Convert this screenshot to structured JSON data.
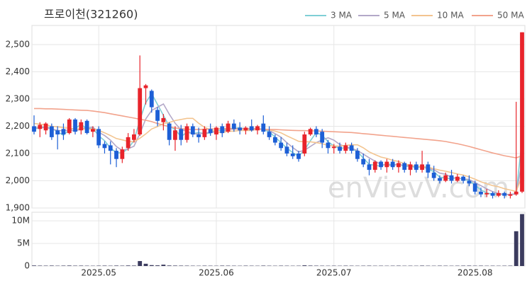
{
  "chart_data": {
    "type": "candlestick",
    "title": "프로이천(321260)",
    "watermark": "enVievV.com",
    "categories": [
      null,
      null,
      null,
      null,
      null,
      null,
      null,
      null,
      null,
      null,
      null,
      "2025.05",
      null,
      null,
      null,
      null,
      null,
      null,
      null,
      null,
      null,
      null,
      null,
      null,
      null,
      null,
      null,
      null,
      null,
      null,
      null,
      "2025.06",
      null,
      null,
      null,
      null,
      null,
      null,
      null,
      null,
      null,
      null,
      null,
      null,
      null,
      null,
      null,
      null,
      null,
      null,
      null,
      "2025.07",
      null,
      null,
      null,
      null,
      null,
      null,
      null,
      null,
      null,
      null,
      null,
      null,
      null,
      null,
      null,
      null,
      null,
      null,
      null,
      null,
      null,
      null,
      null,
      "2025.08",
      null,
      null,
      null,
      null,
      null,
      null,
      null,
      null
    ],
    "open": [
      2200,
      2190,
      2185,
      2200,
      2185,
      2190,
      2175,
      2225,
      2185,
      2220,
      2180,
      2190,
      2135,
      2130,
      2110,
      2080,
      2120,
      2150,
      2170,
      2340,
      2330,
      2260,
      2215,
      2210,
      2150,
      2190,
      2150,
      2200,
      2170,
      2160,
      2190,
      2170,
      2200,
      2180,
      2210,
      2195,
      2185,
      2200,
      2185,
      2210,
      2180,
      2160,
      2140,
      2125,
      2100,
      2100,
      2100,
      2170,
      2190,
      2180,
      2140,
      2120,
      2125,
      2110,
      2130,
      2110,
      2080,
      2060,
      2040,
      2070,
      2050,
      2070,
      2050,
      2065,
      2040,
      2060,
      2040,
      2060,
      2030,
      2010,
      2000,
      2020,
      2000,
      2015,
      2000,
      1990,
      1960,
      1950,
      1955,
      1945,
      1955,
      1945,
      1950,
      1960
    ],
    "high": [
      2240,
      2215,
      2215,
      2210,
      2200,
      2210,
      2230,
      2230,
      2225,
      2225,
      2200,
      2200,
      2145,
      2145,
      2120,
      2125,
      2175,
      2190,
      2460,
      2355,
      2335,
      2270,
      2245,
      2215,
      2200,
      2205,
      2210,
      2210,
      2195,
      2200,
      2210,
      2200,
      2210,
      2220,
      2225,
      2215,
      2200,
      2225,
      2205,
      2240,
      2200,
      2170,
      2160,
      2140,
      2130,
      2110,
      2180,
      2195,
      2200,
      2190,
      2150,
      2135,
      2140,
      2140,
      2140,
      2120,
      2100,
      2080,
      2075,
      2075,
      2080,
      2080,
      2075,
      2070,
      2070,
      2070,
      2110,
      2070,
      2055,
      2020,
      2030,
      2040,
      2025,
      2020,
      2020,
      2000,
      1975,
      1970,
      1960,
      1965,
      1960,
      1960,
      2290,
      2545
    ],
    "low": [
      2170,
      2160,
      2170,
      2150,
      2115,
      2150,
      2170,
      2170,
      2170,
      2170,
      2160,
      2120,
      2100,
      2060,
      2050,
      2065,
      2110,
      2140,
      2165,
      2280,
      2250,
      2200,
      2185,
      2130,
      2110,
      2130,
      2140,
      2160,
      2140,
      2150,
      2165,
      2150,
      2160,
      2175,
      2180,
      2170,
      2170,
      2180,
      2170,
      2170,
      2150,
      2130,
      2110,
      2090,
      2080,
      2070,
      2090,
      2165,
      2160,
      2120,
      2100,
      2100,
      2100,
      2100,
      2100,
      2070,
      2050,
      2020,
      2030,
      2040,
      2030,
      2040,
      2030,
      2030,
      2020,
      2030,
      2030,
      2010,
      2000,
      1990,
      1995,
      1990,
      1995,
      1990,
      1980,
      1950,
      1940,
      1940,
      1935,
      1940,
      1935,
      1935,
      1945,
      1955
    ],
    "close": [
      2180,
      2205,
      2210,
      2160,
      2170,
      2170,
      2225,
      2180,
      2215,
      2175,
      2190,
      2130,
      2120,
      2110,
      2080,
      2115,
      2160,
      2170,
      2340,
      2350,
      2270,
      2220,
      2230,
      2150,
      2185,
      2150,
      2200,
      2170,
      2160,
      2190,
      2175,
      2195,
      2175,
      2210,
      2190,
      2185,
      2195,
      2185,
      2200,
      2180,
      2160,
      2140,
      2120,
      2100,
      2090,
      2080,
      2170,
      2190,
      2170,
      2140,
      2120,
      2125,
      2110,
      2130,
      2110,
      2080,
      2060,
      2040,
      2070,
      2050,
      2070,
      2050,
      2065,
      2040,
      2060,
      2040,
      2060,
      2030,
      2010,
      2000,
      2020,
      2000,
      2015,
      2000,
      1990,
      1960,
      1950,
      1955,
      1945,
      1955,
      1945,
      1950,
      1960,
      2545
    ],
    "volume": [
      120000,
      90000,
      80000,
      100000,
      70000,
      90000,
      110000,
      80000,
      90000,
      70000,
      60000,
      80000,
      90000,
      70000,
      100000,
      80000,
      120000,
      100000,
      1100000,
      500000,
      200000,
      150000,
      300000,
      120000,
      100000,
      90000,
      80000,
      70000,
      60000,
      80000,
      70000,
      60000,
      90000,
      80000,
      70000,
      60000,
      80000,
      70000,
      60000,
      90000,
      70000,
      60000,
      80000,
      70000,
      60000,
      70000,
      150000,
      100000,
      80000,
      70000,
      60000,
      70000,
      60000,
      80000,
      70000,
      60000,
      70000,
      80000,
      60000,
      70000,
      60000,
      70000,
      80000,
      60000,
      70000,
      60000,
      90000,
      70000,
      60000,
      80000,
      70000,
      60000,
      70000,
      80000,
      90000,
      70000,
      80000,
      60000,
      70000,
      60000,
      70000,
      80000,
      7700000,
      11500000
    ],
    "ma": [
      {
        "name": "3 MA",
        "color": "#7fcfd6",
        "values": [
          2190,
          2195,
          2198,
          2192,
          2180,
          2167,
          2188,
          2192,
          2207,
          2190,
          2193,
          2165,
          2147,
          2120,
          2103,
          2102,
          2118,
          2148,
          2223,
          2287,
          2320,
          2280,
          2240,
          2200,
          2188,
          2162,
          2178,
          2173,
          2177,
          2173,
          2175,
          2187,
          2182,
          2193,
          2192,
          2195,
          2190,
          2188,
          2193,
          2188,
          2180,
          2160,
          2140,
          2120,
          2103,
          2090,
          2113,
          2147,
          2177,
          2167,
          2143,
          2128,
          2118,
          2122,
          2117,
          2107,
          2083,
          2060,
          2057,
          2053,
          2063,
          2057,
          2062,
          2052,
          2055,
          2047,
          2053,
          2043,
          2033,
          2013,
          2010,
          2007,
          2012,
          2005,
          2002,
          1983,
          1967,
          1955,
          1950,
          1952,
          1948,
          1950,
          1952,
          2152
        ]
      },
      {
        "name": "5 MA",
        "color": "#b3a8c8",
        "values": [
          2195,
          2195,
          2195,
          2190,
          2185,
          2183,
          2187,
          2181,
          2192,
          2193,
          2197,
          2178,
          2166,
          2149,
          2126,
          2111,
          2117,
          2127,
          2173,
          2227,
          2258,
          2270,
          2282,
          2244,
          2211,
          2187,
          2183,
          2171,
          2173,
          2174,
          2179,
          2178,
          2179,
          2189,
          2189,
          2191,
          2191,
          2193,
          2191,
          2189,
          2184,
          2173,
          2160,
          2140,
          2122,
          2106,
          2112,
          2126,
          2140,
          2150,
          2158,
          2149,
          2133,
          2125,
          2119,
          2111,
          2098,
          2084,
          2072,
          2060,
          2058,
          2056,
          2061,
          2055,
          2057,
          2051,
          2053,
          2046,
          2040,
          2028,
          2024,
          2012,
          2009,
          2007,
          2005,
          1993,
          1982,
          1970,
          1960,
          1953,
          1950,
          1950,
          1951,
          2071
        ]
      },
      {
        "name": "10 MA",
        "color": "#f3c48f",
        "values": [
          2210,
          2208,
          2205,
          2200,
          2198,
          2195,
          2193,
          2190,
          2190,
          2190,
          2190,
          2185,
          2176,
          2166,
          2155,
          2150,
          2145,
          2143,
          2156,
          2172,
          2190,
          2199,
          2210,
          2214,
          2221,
          2225,
          2229,
          2229,
          2211,
          2196,
          2187,
          2180,
          2176,
          2182,
          2182,
          2185,
          2184,
          2185,
          2189,
          2188,
          2187,
          2182,
          2176,
          2165,
          2155,
          2145,
          2143,
          2143,
          2140,
          2136,
          2130,
          2128,
          2127,
          2130,
          2132,
          2132,
          2121,
          2106,
          2096,
          2087,
          2082,
          2075,
          2071,
          2062,
          2057,
          2053,
          2052,
          2050,
          2044,
          2039,
          2035,
          2030,
          2025,
          2021,
          2014,
          2006,
          1996,
          1989,
          1982,
          1978,
          1971,
          1966,
          1961,
          2017
        ]
      },
      {
        "name": "50 MA",
        "color": "#f2a38c",
        "values": [
          2265,
          2265,
          2264,
          2264,
          2263,
          2262,
          2261,
          2260,
          2259,
          2258,
          2256,
          2253,
          2250,
          2246,
          2242,
          2238,
          2234,
          2230,
          2226,
          2222,
          2217,
          2210,
          2204,
          2198,
          2194,
          2191,
          2189,
          2188,
          2188,
          2189,
          2190,
          2190,
          2191,
          2191,
          2191,
          2190,
          2190,
          2190,
          2189,
          2189,
          2188,
          2188,
          2187,
          2186,
          2185,
          2184,
          2184,
          2183,
          2183,
          2182,
          2181,
          2180,
          2179,
          2178,
          2177,
          2175,
          2173,
          2171,
          2169,
          2167,
          2165,
          2163,
          2161,
          2159,
          2157,
          2155,
          2153,
          2151,
          2149,
          2147,
          2144,
          2140,
          2136,
          2131,
          2126,
          2120,
          2114,
          2108,
          2102,
          2097,
          2092,
          2088,
          2084,
          2092
        ]
      }
    ],
    "up_color": "#e8242b",
    "down_color": "#1d5fd6",
    "volume_color": "#3b3b5e",
    "ylim": [
      1900,
      2570
    ],
    "yticks": [
      {
        "value": 1900,
        "label": "1,900"
      },
      {
        "value": 2000,
        "label": "2,000"
      },
      {
        "value": 2100,
        "label": "2,100"
      },
      {
        "value": 2200,
        "label": "2,200"
      },
      {
        "value": 2300,
        "label": "2,300"
      },
      {
        "value": 2400,
        "label": "2,400"
      },
      {
        "value": 2500,
        "label": "2,500"
      }
    ],
    "volume_ylim": [
      0,
      11900000
    ],
    "volume_yticks": [
      0,
      {
        "value": 5000000,
        "label": "5M"
      },
      {
        "value": 10000000,
        "label": "10M"
      }
    ],
    "grid": true
  }
}
